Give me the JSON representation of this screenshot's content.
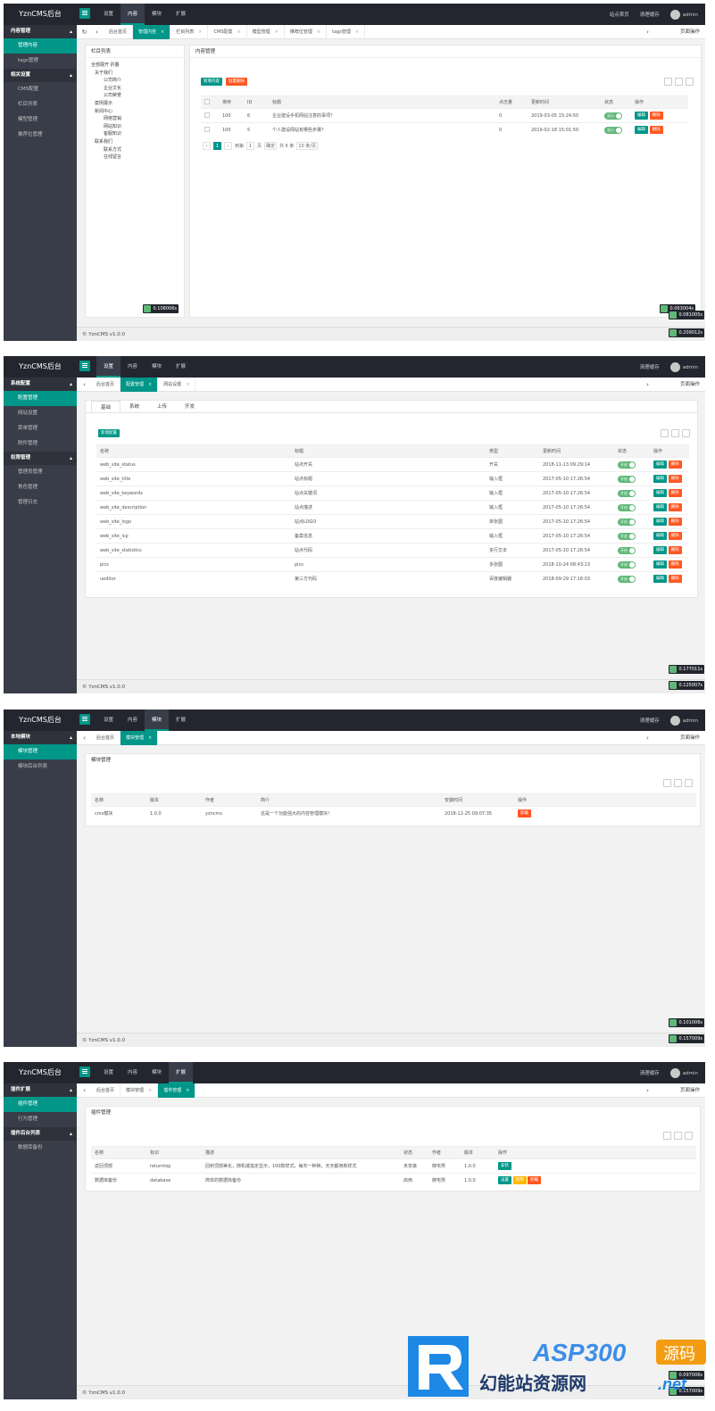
{
  "app": {
    "brand": "YznCMS后台",
    "top_menu": [
      "设置",
      "内容",
      "模块",
      "扩展"
    ],
    "site_home": "站点首页",
    "clear_cache": "清理缓存",
    "admin": "admin",
    "page_ops": "页面操作",
    "footer": "© YznCMS v1.0.0"
  },
  "s1": {
    "side": {
      "g1": "内容管理",
      "i1": "管理内容",
      "i2": "tags管理",
      "g2": "相关设置",
      "i3": "CMS配置",
      "i4": "栏目列表",
      "i5": "模型管理",
      "i6": "推荐位管理"
    },
    "tabs": [
      "后台首页",
      "管理内容",
      "栏目列表",
      "CMS配置",
      "模型管理",
      "推荐位管理",
      "tags管理"
    ],
    "tree_title": "栏目列表",
    "tree": [
      "全部展开 折叠",
      "关于我们",
      "公司简介",
      "企业文化",
      "公司荣誉",
      "案例展示",
      "新闻中心",
      "网络营销",
      "网站知识",
      "客服知识",
      "联系我们",
      "联系方式",
      "在线留言"
    ],
    "tree_time": "0.108006s",
    "content_title": "内容管理",
    "btn_add": "新增内容",
    "btn_del": "批量删除",
    "cols": [
      "排序",
      "ID",
      "标题",
      "点击量",
      "更新时间",
      "状态",
      "操作"
    ],
    "rows": [
      {
        "sort": "100",
        "id": "6",
        "title": "企业建设手机网站注意的事项？",
        "hits": "0",
        "time": "2019-03-05 15:24:50",
        "status": "显示"
      },
      {
        "sort": "100",
        "id": "5",
        "title": "个人建设网站有哪些步骤？",
        "hits": "0",
        "time": "2019-02-18 15:01:50",
        "status": "显示"
      }
    ],
    "edit": "编辑",
    "del": "删除",
    "pager": {
      "page": "1",
      "goto": "到第",
      "p": "1",
      "unit": "页",
      "ok": "确定",
      "total": "共 6 条",
      "size": "10 条/页"
    },
    "t1": "0.063004s",
    "t2": "0.081005s",
    "t3": "0.209012s"
  },
  "s2": {
    "side": {
      "g1": "系统配置",
      "i1": "配置管理",
      "i2": "网站设置",
      "i3": "菜单管理",
      "i4": "附件管理",
      "g2": "权限管理",
      "i5": "管理员管理",
      "i6": "角色管理",
      "i7": "管理日志"
    },
    "tabs": [
      "后台首页",
      "配置管理",
      "网站设置"
    ],
    "subtabs": [
      "基础",
      "系统",
      "上传",
      "开发"
    ],
    "btn_add": "新增配置",
    "cols": [
      "名称",
      "标题",
      "类型",
      "更新时间",
      "状态",
      "操作"
    ],
    "rows": [
      {
        "name": "web_site_status",
        "title": "站点开关",
        "type": "开关",
        "time": "2018-11-13 09:29:14"
      },
      {
        "name": "web_site_title",
        "title": "站点标题",
        "type": "输入框",
        "time": "2017-05-10 17:26:54"
      },
      {
        "name": "web_site_keywords",
        "title": "站点关键词",
        "type": "输入框",
        "time": "2017-05-10 17:26:54"
      },
      {
        "name": "web_site_description",
        "title": "站点描述",
        "type": "输入框",
        "time": "2017-05-10 17:26:54"
      },
      {
        "name": "web_site_logo",
        "title": "站点LOGO",
        "type": "单张图",
        "time": "2017-05-10 17:26:54"
      },
      {
        "name": "web_site_icp",
        "title": "备案信息",
        "type": "输入框",
        "time": "2017-05-10 17:26:54"
      },
      {
        "name": "web_site_statistics",
        "title": "站点代码",
        "type": "多行文本",
        "time": "2017-05-10 17:26:54"
      },
      {
        "name": "pics",
        "title": "pics",
        "type": "多张图",
        "time": "2018-10-24 08:43:13"
      },
      {
        "name": "ueditor",
        "title": "第三方代码",
        "type": "百度编辑器",
        "time": "2018-09-29 17:16:03"
      }
    ],
    "status": "开启",
    "edit": "编辑",
    "del": "删除",
    "t1": "0.177011s",
    "t2": "0.125007s"
  },
  "s3": {
    "side": {
      "g1": "本地模块",
      "i1": "模块管理",
      "i2": "模块后台列表"
    },
    "tabs": [
      "后台首页",
      "模块管理"
    ],
    "title": "模块管理",
    "cols": [
      "名称",
      "版本",
      "作者",
      "简介",
      "安装时间",
      "操作"
    ],
    "row": {
      "name": "cms模块",
      "ver": "1.0.0",
      "author": "yzncms",
      "desc": "这是一个功能强大的内容管理模块！",
      "time": "2018-12-25 09:07:35",
      "op": "卸载"
    },
    "t1": "0.101006s",
    "t2": "0.157009s"
  },
  "s4": {
    "side": {
      "g1": "插件扩展",
      "i1": "插件管理",
      "i2": "行为管理",
      "g2": "插件后台列表",
      "i3": "数据库备份"
    },
    "tabs": [
      "后台首页",
      "模块管理",
      "插件管理"
    ],
    "title": "插件管理",
    "cols": [
      "名称",
      "标识",
      "描述",
      "状态",
      "作者",
      "版本",
      "操作"
    ],
    "rows": [
      {
        "name": "返回顶部",
        "id": "returntop",
        "desc": "回到顶部美化，随机或指定显示，100款样式，每天一种换，天天都用新样式",
        "status": "未安装",
        "author": "御宅男",
        "ver": "1.0.0"
      },
      {
        "name": "数据库备份",
        "id": "database",
        "desc": "简单的数据库备份",
        "status": "启用",
        "author": "御宅男",
        "ver": "1.0.0"
      }
    ],
    "install": "安装",
    "setting": "设置",
    "disable": "禁用",
    "uninstall": "卸载",
    "t1": "0.097006s",
    "t2": "0.157009s"
  },
  "brand_mark": {
    "big": "ASP300",
    "tag": "源码",
    "cn": "幻能站资源网",
    "url": ".net"
  }
}
